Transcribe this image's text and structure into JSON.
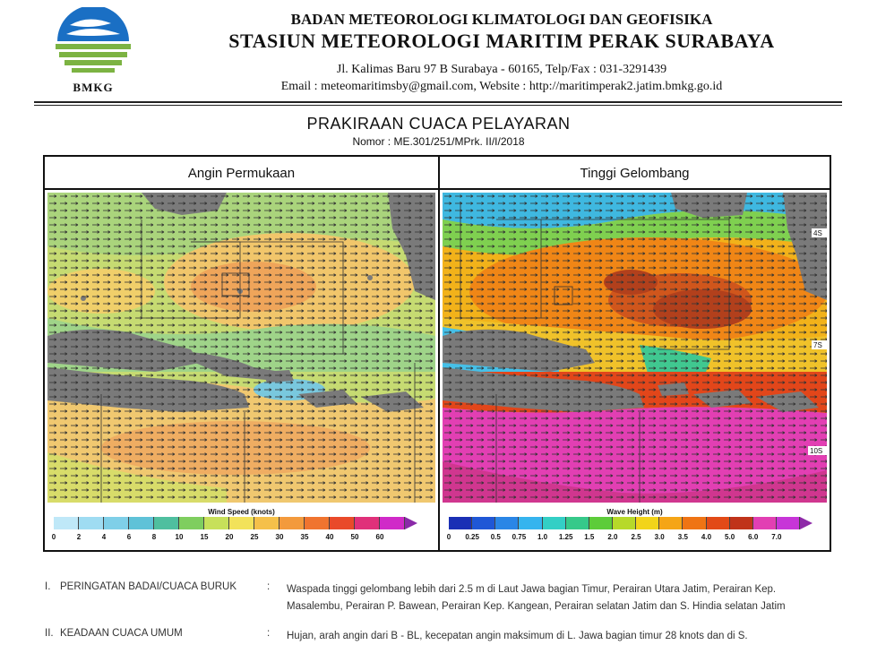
{
  "header": {
    "logo_text": "BMKG",
    "org_line1": "BADAN METEOROLOGI KLIMATOLOGI DAN GEOFISIKA",
    "org_line2": "STASIUN METEOROLOGI MARITIM PERAK SURABAYA",
    "address": "Jl. Kalimas Baru 97 B Surabaya - 60165, Telp/Fax : 031-3291439",
    "contact": "Email : meteomaritimsby@gmail.com, Website : http://maritimperak2.jatim.bmkg.go.id"
  },
  "document": {
    "title": "PRAKIRAAN CUACA PELAYARAN",
    "number": "Nomor : ME.301/251/MPrk. II/I/2018"
  },
  "maps": {
    "wind": {
      "title": "Angin Permukaan",
      "legend_title": "Wind Speed (knots)",
      "ticks": [
        "0",
        "2",
        "4",
        "6",
        "8",
        "10",
        "15",
        "20",
        "25",
        "30",
        "35",
        "40",
        "50",
        "60"
      ],
      "colors": [
        "#bfe8f8",
        "#9fdcf2",
        "#7fcfe8",
        "#5fc2d8",
        "#4fbf9f",
        "#7fce5f",
        "#c7e05a",
        "#f2e25a",
        "#f5c04a",
        "#f39a3c",
        "#f0742f",
        "#e94a2a",
        "#e0307a",
        "#d02ac8",
        "#8a2aa8"
      ]
    },
    "wave": {
      "title": "Tinggi Gelombang",
      "legend_title": "Wave Height (m)",
      "ticks": [
        "0",
        "0.25",
        "0.5",
        "0.75",
        "1.0",
        "1.25",
        "1.5",
        "2.0",
        "2.5",
        "3.0",
        "3.5",
        "4.0",
        "5.0",
        "6.0",
        "7.0"
      ],
      "colors": [
        "#1a2fb5",
        "#1f57d6",
        "#2a86e6",
        "#35b4ee",
        "#33cfc5",
        "#36c98a",
        "#5dcc3a",
        "#b7d92a",
        "#f2d41a",
        "#f5a516",
        "#ef7414",
        "#e24a17",
        "#c0331a",
        "#e23fb3",
        "#c735d8",
        "#8e2aa8"
      ],
      "lat_labels": [
        "4S",
        "7S",
        "10S"
      ]
    }
  },
  "sections": [
    {
      "num": "I.",
      "label": "PERINGATAN BADAI/CUACA BURUK",
      "colon": ":",
      "text_line1": "Waspada tinggi gelombang lebih dari 2.5 m di Laut Jawa bagian Timur, Perairan Utara Jatim, Perairan Kep.",
      "text_line2": "Masalembu, Perairan P. Bawean, Perairan Kep. Kangean, Perairan selatan Jatim dan S. Hindia selatan Jatim"
    },
    {
      "num": "II.",
      "label": "KEADAAN CUACA UMUM",
      "colon": ":",
      "text_line1": "Hujan, arah angin dari B - BL,  kecepatan angin maksimum  di L. Jawa bagian timur 28 knots  dan di S."
    }
  ]
}
